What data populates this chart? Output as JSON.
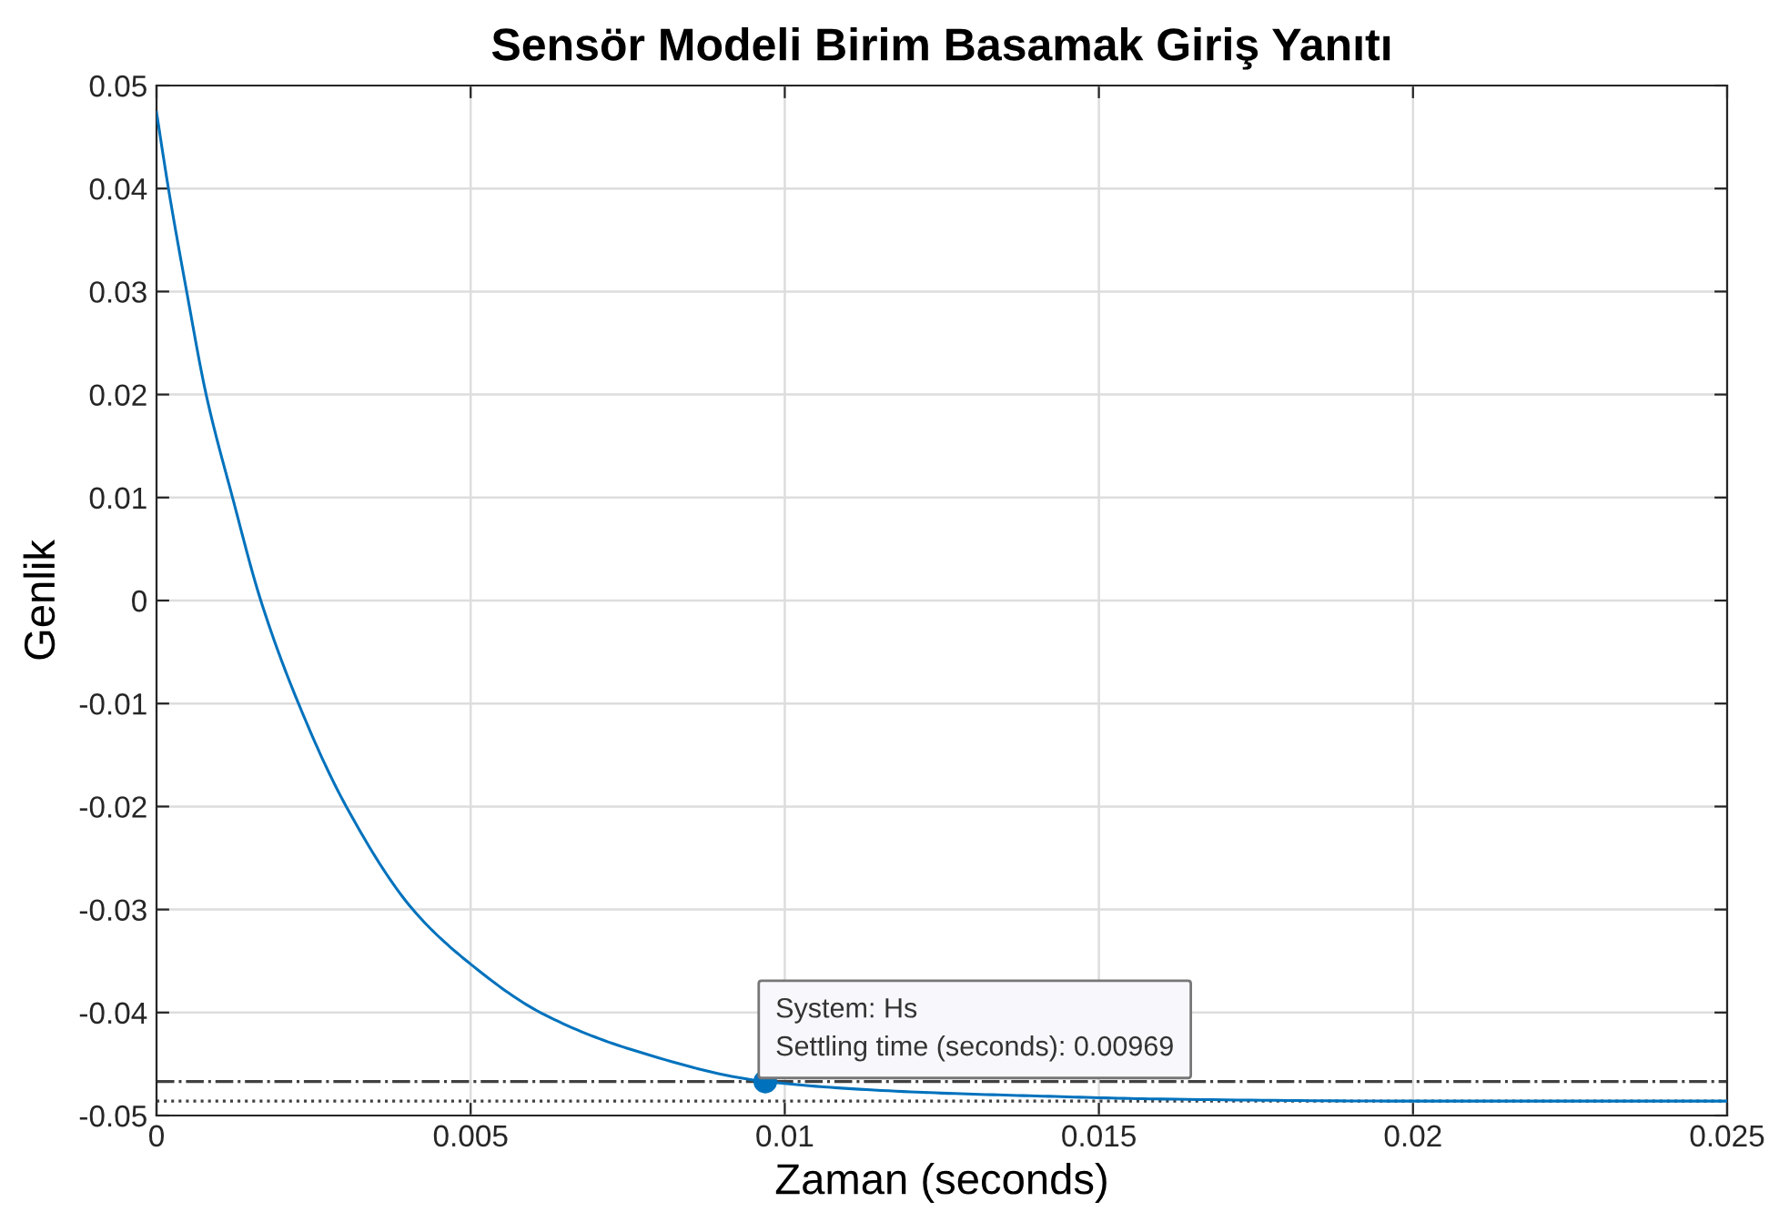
{
  "chart_data": {
    "type": "line",
    "title": "Sensör Modeli Birim Basamak Giriş Yanıtı",
    "xlabel": "Zaman (seconds)",
    "ylabel": "Genlik",
    "xlim": [
      0,
      0.025
    ],
    "xticks": [
      0,
      0.005,
      0.01,
      0.015,
      0.02,
      0.025
    ],
    "ylim": [
      -0.05,
      0.05
    ],
    "yticks": [
      -0.05,
      -0.04,
      -0.03,
      -0.02,
      -0.01,
      0,
      0.01,
      0.02,
      0.03,
      0.04,
      0.05
    ],
    "grid": true,
    "series": [
      {
        "color": "#0072bd",
        "x": [
          0,
          0.00019,
          0.00048,
          0.00079,
          0.00121,
          0.00166,
          0.00226,
          0.00302,
          0.00408,
          0.005,
          0.00611,
          0.00756,
          0.00969,
          0.012,
          0.014,
          0.016,
          0.02,
          0.025
        ],
        "values": [
          0.0474,
          0.04,
          0.03,
          0.02,
          0.01,
          0,
          -0.01,
          -0.02,
          -0.03,
          -0.0353,
          -0.04,
          -0.0436,
          -0.0467,
          -0.0477,
          -0.0481,
          -0.0484,
          -0.0486,
          -0.0486
        ]
      },
      {
        "type": "scatter",
        "color": "#0072bd",
        "marker": "circle",
        "x": [
          0.00969
        ],
        "values": [
          -0.0467
        ]
      }
    ],
    "ref_lines": [
      {
        "axis": "y",
        "value": -0.0467,
        "color": "#404040",
        "line_style": "dashdot"
      },
      {
        "axis": "y",
        "value": -0.0486,
        "color": "#404040",
        "line_style": "dotted"
      }
    ],
    "annotations": [
      {
        "text": "System: Hs\nSettling time (seconds): 0.00969",
        "x": 0.00969,
        "y": -0.0467
      }
    ]
  }
}
